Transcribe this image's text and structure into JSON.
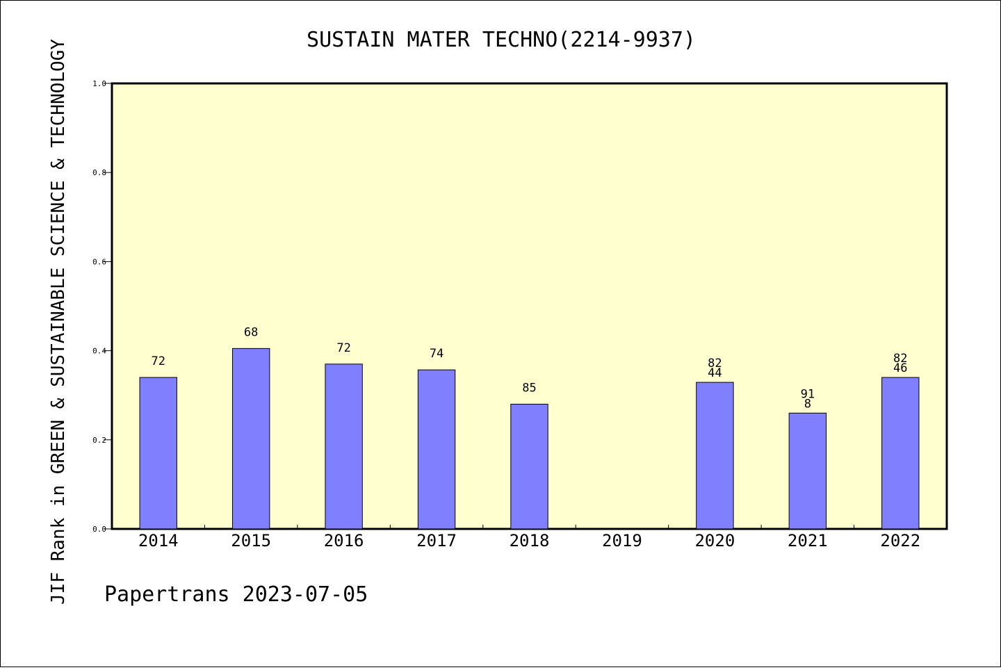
{
  "chart_data": {
    "type": "bar",
    "title": "SUSTAIN MATER TECHNO(2214-9937)",
    "xlabel": "",
    "ylabel": "JIF Rank in GREEN & SUSTAINABLE SCIENCE & TECHNOLOGY",
    "categories": [
      "2014",
      "2015",
      "2016",
      "2017",
      "2018",
      "2019",
      "2020",
      "2021",
      "2022"
    ],
    "values": [
      0.34,
      0.405,
      0.37,
      0.357,
      0.28,
      null,
      0.329,
      0.26,
      0.34
    ],
    "bar_labels": [
      [
        "72"
      ],
      [
        "68"
      ],
      [
        "72"
      ],
      [
        "74"
      ],
      [
        "85"
      ],
      [],
      [
        "82",
        "44"
      ],
      [
        "91",
        "8"
      ],
      [
        "82",
        "46"
      ]
    ],
    "ylim": [
      0,
      1.0
    ],
    "yticks": [
      "0.0",
      "0.2",
      "0.4",
      "0.6",
      "0.8",
      "1.0"
    ],
    "ytick_values": [
      0,
      0.2,
      0.4,
      0.6,
      0.8,
      1.0
    ],
    "grid": false,
    "colors": {
      "bar_fill": "#8080ff",
      "plot_background": "#ffffd0",
      "axis": "#000000"
    }
  },
  "footer": {
    "text": "Papertrans 2023-07-05"
  }
}
